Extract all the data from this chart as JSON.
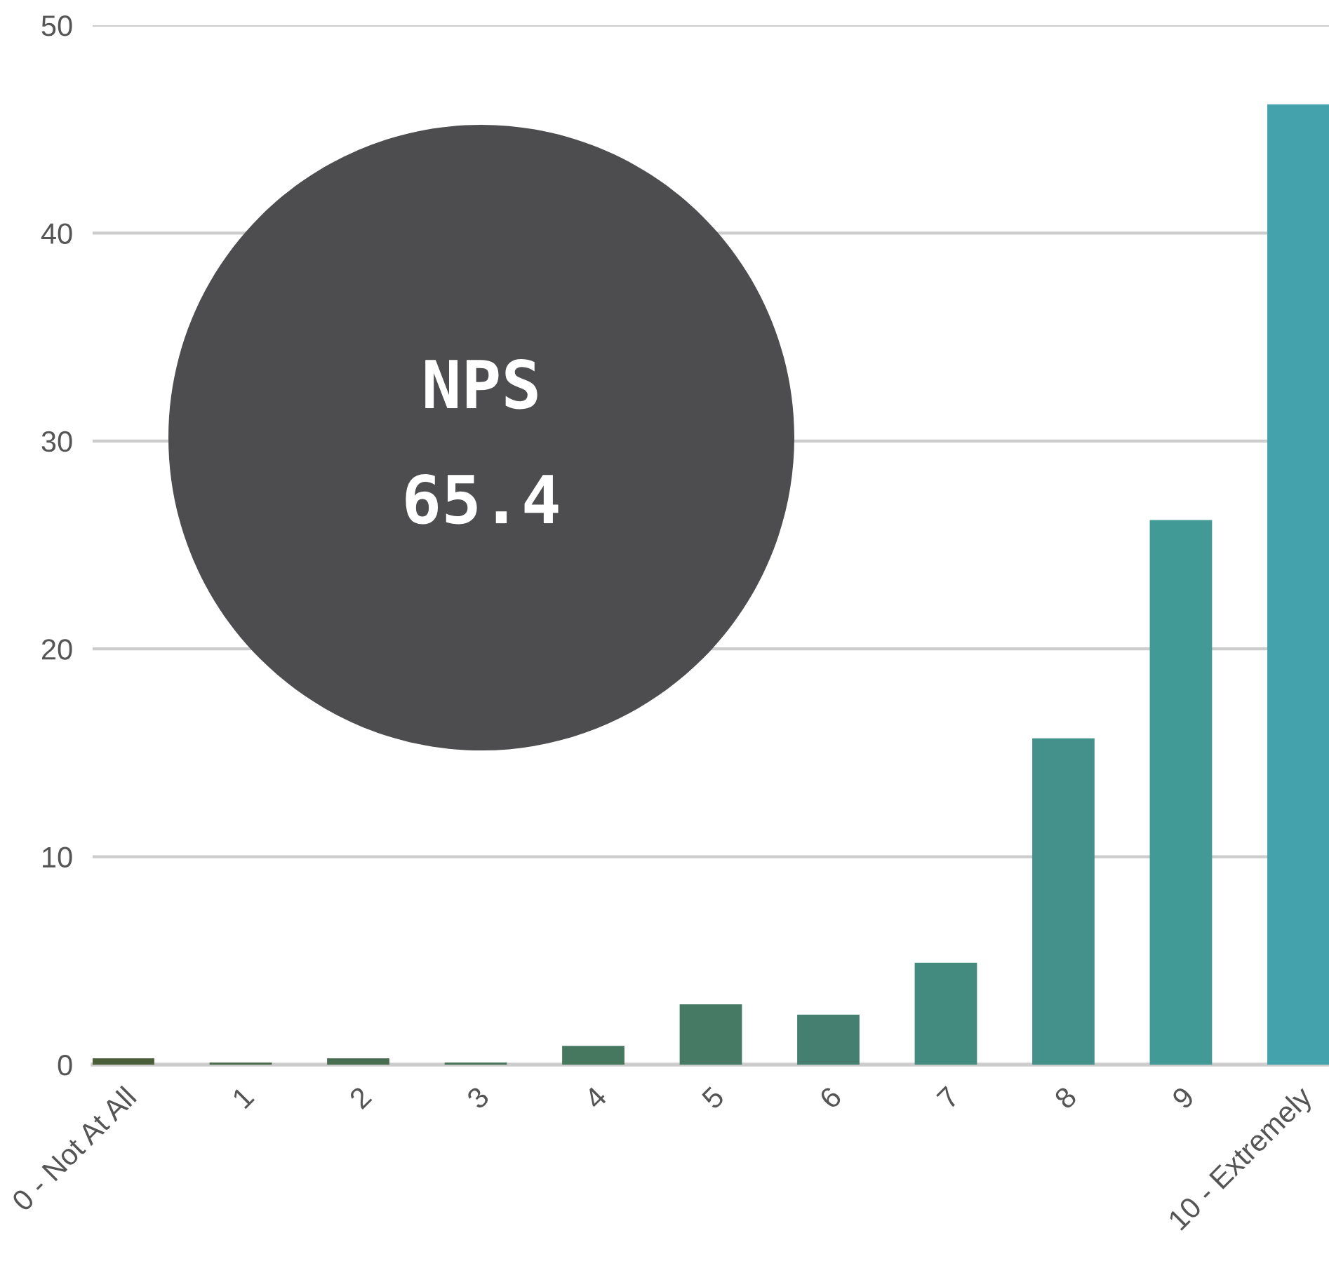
{
  "chart_data": {
    "type": "bar",
    "categories": [
      "0 - Not At All",
      "1",
      "2",
      "3",
      "4",
      "5",
      "6",
      "7",
      "8",
      "9",
      "10 - Extremely"
    ],
    "values": [
      0.3,
      0.1,
      0.3,
      0.1,
      0.9,
      2.9,
      2.4,
      4.9,
      15.7,
      26.2,
      46.2
    ],
    "colors": [
      "#4b5e3a",
      "#4a6a4a",
      "#476c4f",
      "#47735a",
      "#467860",
      "#467a64",
      "#457f6f",
      "#438a7f",
      "#43918a",
      "#429a97",
      "#44a2ad"
    ],
    "ylim": [
      0,
      50
    ],
    "yticks": [
      0,
      10,
      20,
      30,
      40,
      50
    ],
    "grid": "y",
    "legend": false,
    "annotations": [
      "NPS",
      "65.4"
    ]
  }
}
